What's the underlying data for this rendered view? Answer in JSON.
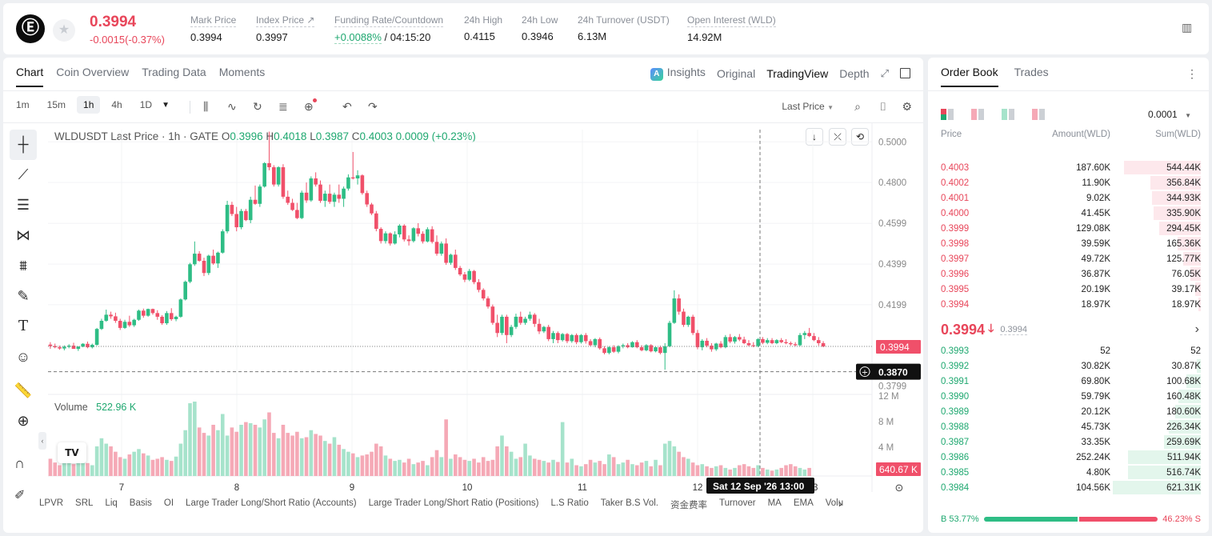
{
  "ticker": {
    "logo": "Ⓔ",
    "price": "0.3994",
    "change": "-0.0015(-0.37%)",
    "stats": [
      {
        "label": "Mark Price",
        "value": "0.3994"
      },
      {
        "label": "Index Price ↗",
        "value": "0.3997"
      },
      {
        "label": "Funding Rate/Countdown",
        "value": "+0.0088%",
        "value2": "/ 04:15:20"
      },
      {
        "label": "24h High",
        "value": "0.4115"
      },
      {
        "label": "24h Low",
        "value": "0.3946"
      },
      {
        "label": "24h Turnover (USDT)",
        "value": "6.13M"
      },
      {
        "label": "Open Interest (WLD)",
        "value": "14.92M"
      }
    ]
  },
  "chart": {
    "tabs": [
      "Chart",
      "Coin Overview",
      "Trading Data",
      "Moments"
    ],
    "views": {
      "insights": "Insights",
      "original": "Original",
      "tradingview": "TradingView",
      "depth": "Depth"
    },
    "timeframes": [
      "1m",
      "15m",
      "1h",
      "4h",
      "1D"
    ],
    "price_type": "Last Price",
    "legend": {
      "title": "WLDUSDT Last Price · 1h · GATE",
      "o": "0.3996",
      "h": "0.4018",
      "l": "0.3987",
      "c": "0.4003",
      "chg": "0.0009 (+0.23%)"
    },
    "volume": {
      "label": "Volume",
      "value": "522.96 K"
    },
    "crosshair": {
      "price": "0.3870",
      "date": "Sat 12 Sep '26",
      "time": "13:00"
    },
    "last_price_label": "0.3994",
    "last_vol_label": "640.67 K",
    "indicators": [
      "LPVR",
      "SRL",
      "Liq",
      "Basis",
      "OI",
      "Large Trader Long/Short Ratio (Accounts)",
      "Large Trader Long/Short Ratio (Positions)",
      "L.S Ratio",
      "Taker B.S Vol.",
      "资金费率",
      "Turnover",
      "MA",
      "EMA",
      "Volu"
    ]
  },
  "chart_data": {
    "type": "candlestick",
    "x_ticks": [
      "7",
      "8",
      "9",
      "10",
      "11",
      "12",
      "13"
    ],
    "y_ticks": [
      "0.5000",
      "0.4800",
      "0.4599",
      "0.4399",
      "0.4199",
      "0.3994",
      "0.3799"
    ],
    "vol_ticks": [
      "12 M",
      "8 M",
      "4 M"
    ],
    "ohlc": [
      [
        0.4003,
        0.4015,
        0.3982,
        0.3996
      ],
      [
        0.3996,
        0.4008,
        0.3985,
        0.399
      ],
      [
        0.399,
        0.3998,
        0.3978,
        0.3984
      ],
      [
        0.3984,
        0.3999,
        0.3975,
        0.3992
      ],
      [
        0.3992,
        0.4005,
        0.3985,
        0.3998
      ],
      [
        0.3998,
        0.4012,
        0.3988,
        0.3982
      ],
      [
        0.3982,
        0.3995,
        0.3972,
        0.3993
      ],
      [
        0.3993,
        0.401,
        0.399,
        0.4007
      ],
      [
        0.4007,
        0.4018,
        0.3985,
        0.399
      ],
      [
        0.399,
        0.4008,
        0.3984,
        0.4002
      ],
      [
        0.4002,
        0.4085,
        0.3998,
        0.408
      ],
      [
        0.408,
        0.413,
        0.4075,
        0.412
      ],
      [
        0.412,
        0.4175,
        0.4115,
        0.415
      ],
      [
        0.415,
        0.4165,
        0.413,
        0.4142
      ],
      [
        0.4142,
        0.416,
        0.411,
        0.412
      ],
      [
        0.412,
        0.413,
        0.4075,
        0.4085
      ],
      [
        0.4085,
        0.4125,
        0.408,
        0.4115
      ],
      [
        0.4115,
        0.4145,
        0.409,
        0.4098
      ],
      [
        0.4098,
        0.413,
        0.409,
        0.4125
      ],
      [
        0.4125,
        0.4175,
        0.412,
        0.417
      ],
      [
        0.417,
        0.418,
        0.4135,
        0.4145
      ],
      [
        0.4145,
        0.418,
        0.414,
        0.4178
      ],
      [
        0.4178,
        0.418,
        0.415,
        0.4158
      ],
      [
        0.4158,
        0.4172,
        0.4125,
        0.414
      ],
      [
        0.414,
        0.4148,
        0.41,
        0.4108
      ],
      [
        0.4108,
        0.4168,
        0.41,
        0.4158
      ],
      [
        0.4158,
        0.4182,
        0.412,
        0.4128
      ],
      [
        0.4128,
        0.4145,
        0.4118,
        0.414
      ],
      [
        0.414,
        0.423,
        0.4135,
        0.4225
      ],
      [
        0.4225,
        0.4318,
        0.422,
        0.4312
      ],
      [
        0.4312,
        0.4405,
        0.4305,
        0.4398
      ],
      [
        0.4398,
        0.451,
        0.439,
        0.445
      ],
      [
        0.445,
        0.4462,
        0.441,
        0.4415
      ],
      [
        0.4415,
        0.443,
        0.434,
        0.4355
      ],
      [
        0.4355,
        0.4445,
        0.4345,
        0.444
      ],
      [
        0.444,
        0.447,
        0.4395,
        0.4402
      ],
      [
        0.4402,
        0.446,
        0.438,
        0.4455
      ],
      [
        0.4455,
        0.457,
        0.445,
        0.456
      ],
      [
        0.456,
        0.471,
        0.455,
        0.469
      ],
      [
        0.469,
        0.4705,
        0.4635,
        0.4645
      ],
      [
        0.4645,
        0.468,
        0.456,
        0.458
      ],
      [
        0.458,
        0.467,
        0.457,
        0.466
      ],
      [
        0.466,
        0.467,
        0.461,
        0.4615
      ],
      [
        0.4615,
        0.473,
        0.46,
        0.4715
      ],
      [
        0.4715,
        0.4785,
        0.469,
        0.4695
      ],
      [
        0.4695,
        0.479,
        0.468,
        0.478
      ],
      [
        0.478,
        0.49,
        0.4775,
        0.4895
      ],
      [
        0.4895,
        0.505,
        0.486,
        0.4875
      ],
      [
        0.4875,
        0.4885,
        0.478,
        0.479
      ],
      [
        0.479,
        0.488,
        0.478,
        0.4875
      ],
      [
        0.4875,
        0.489,
        0.472,
        0.473
      ],
      [
        0.473,
        0.476,
        0.469,
        0.47
      ],
      [
        0.47,
        0.472,
        0.466,
        0.4665
      ],
      [
        0.4665,
        0.47,
        0.462,
        0.4625
      ],
      [
        0.4625,
        0.476,
        0.462,
        0.475
      ],
      [
        0.475,
        0.48,
        0.47,
        0.4712
      ],
      [
        0.4712,
        0.483,
        0.4705,
        0.482
      ],
      [
        0.482,
        0.485,
        0.478,
        0.479
      ],
      [
        0.479,
        0.481,
        0.47,
        0.471
      ],
      [
        0.471,
        0.476,
        0.468,
        0.4745
      ],
      [
        0.4745,
        0.479,
        0.4695,
        0.4705
      ],
      [
        0.4705,
        0.475,
        0.468,
        0.474
      ],
      [
        0.474,
        0.479,
        0.47,
        0.472
      ],
      [
        0.472,
        0.478,
        0.468,
        0.477
      ],
      [
        0.477,
        0.484,
        0.476,
        0.4825
      ],
      [
        0.4825,
        0.495,
        0.4815,
        0.482
      ],
      [
        0.482,
        0.486,
        0.479,
        0.4835
      ],
      [
        0.4835,
        0.484,
        0.474,
        0.4748
      ],
      [
        0.4748,
        0.476,
        0.468,
        0.4692
      ],
      [
        0.4692,
        0.47,
        0.464,
        0.4648
      ],
      [
        0.4648,
        0.466,
        0.456,
        0.4572
      ],
      [
        0.4572,
        0.458,
        0.45,
        0.4512
      ],
      [
        0.4512,
        0.456,
        0.45,
        0.455
      ],
      [
        0.455,
        0.4555,
        0.449,
        0.45
      ],
      [
        0.45,
        0.456,
        0.4495,
        0.4545
      ],
      [
        0.4545,
        0.4595,
        0.453,
        0.4588
      ],
      [
        0.4588,
        0.4595,
        0.451,
        0.452
      ],
      [
        0.452,
        0.454,
        0.449,
        0.4512
      ],
      [
        0.4512,
        0.458,
        0.4505,
        0.4575
      ],
      [
        0.4575,
        0.46,
        0.4535,
        0.4548
      ],
      [
        0.4548,
        0.456,
        0.45,
        0.451
      ],
      [
        0.451,
        0.458,
        0.4505,
        0.457
      ],
      [
        0.457,
        0.4585,
        0.45,
        0.4508
      ],
      [
        0.4508,
        0.454,
        0.444,
        0.445
      ],
      [
        0.445,
        0.451,
        0.444,
        0.45
      ],
      [
        0.45,
        0.4525,
        0.4395,
        0.4405
      ],
      [
        0.4405,
        0.445,
        0.4395,
        0.4445
      ],
      [
        0.4445,
        0.447,
        0.437,
        0.438
      ],
      [
        0.438,
        0.439,
        0.434,
        0.4348
      ],
      [
        0.4348,
        0.436,
        0.431,
        0.4322
      ],
      [
        0.4322,
        0.4375,
        0.4315,
        0.4365
      ],
      [
        0.4365,
        0.437,
        0.43,
        0.431
      ],
      [
        0.431,
        0.4325,
        0.426,
        0.4272
      ],
      [
        0.4272,
        0.428,
        0.422,
        0.423
      ],
      [
        0.423,
        0.424,
        0.418,
        0.419
      ],
      [
        0.419,
        0.42,
        0.41,
        0.411
      ],
      [
        0.411,
        0.415,
        0.404,
        0.406
      ],
      [
        0.406,
        0.415,
        0.405,
        0.414
      ],
      [
        0.414,
        0.415,
        0.401,
        0.405
      ],
      [
        0.405,
        0.41,
        0.404,
        0.409
      ],
      [
        0.409,
        0.4155,
        0.408,
        0.414
      ],
      [
        0.414,
        0.4165,
        0.41,
        0.411
      ],
      [
        0.411,
        0.414,
        0.41,
        0.413
      ],
      [
        0.413,
        0.4165,
        0.412,
        0.415
      ],
      [
        0.415,
        0.4158,
        0.409,
        0.4105
      ],
      [
        0.4105,
        0.413,
        0.4055,
        0.4068
      ],
      [
        0.4068,
        0.4095,
        0.406,
        0.409
      ],
      [
        0.409,
        0.41,
        0.402,
        0.403
      ],
      [
        0.403,
        0.407,
        0.401,
        0.406
      ],
      [
        0.406,
        0.4068,
        0.401,
        0.4025
      ],
      [
        0.4025,
        0.406,
        0.4018,
        0.4055
      ],
      [
        0.4055,
        0.406,
        0.401,
        0.402
      ],
      [
        0.402,
        0.4055,
        0.4012,
        0.405
      ],
      [
        0.405,
        0.4058,
        0.4005,
        0.4015
      ],
      [
        0.4015,
        0.4055,
        0.4008,
        0.405
      ],
      [
        0.405,
        0.406,
        0.4008,
        0.402
      ],
      [
        0.402,
        0.403,
        0.3995,
        0.4
      ],
      [
        0.4,
        0.4035,
        0.399,
        0.403
      ],
      [
        0.403,
        0.4038,
        0.3978,
        0.3985
      ],
      [
        0.3985,
        0.3995,
        0.3955,
        0.3962
      ],
      [
        0.3962,
        0.3995,
        0.3955,
        0.399
      ],
      [
        0.399,
        0.4,
        0.3962,
        0.3968
      ],
      [
        0.3968,
        0.4,
        0.396,
        0.3995
      ],
      [
        0.3995,
        0.4008,
        0.3985,
        0.4
      ],
      [
        0.4,
        0.401,
        0.3985,
        0.399
      ],
      [
        0.399,
        0.402,
        0.3988,
        0.4015
      ],
      [
        0.4015,
        0.4025,
        0.3985,
        0.399
      ],
      [
        0.399,
        0.4,
        0.397,
        0.3975
      ],
      [
        0.3975,
        0.4005,
        0.397,
        0.4
      ],
      [
        0.4,
        0.4005,
        0.3965,
        0.397
      ],
      [
        0.397,
        0.3995,
        0.3965,
        0.399
      ],
      [
        0.399,
        0.3998,
        0.3955,
        0.3962
      ],
      [
        0.3962,
        0.401,
        0.388,
        0.3995
      ],
      [
        0.3995,
        0.412,
        0.399,
        0.411
      ],
      [
        0.411,
        0.427,
        0.4105,
        0.423
      ],
      [
        0.423,
        0.425,
        0.415,
        0.4165
      ],
      [
        0.4165,
        0.418,
        0.409,
        0.41
      ],
      [
        0.41,
        0.4145,
        0.409,
        0.414
      ],
      [
        0.414,
        0.415,
        0.405,
        0.406
      ],
      [
        0.406,
        0.4075,
        0.398,
        0.399
      ],
      [
        0.399,
        0.403,
        0.3975,
        0.4022
      ],
      [
        0.4022,
        0.4035,
        0.399,
        0.3998
      ],
      [
        0.3998,
        0.401,
        0.3968,
        0.398
      ],
      [
        0.398,
        0.4012,
        0.3972,
        0.4008
      ],
      [
        0.4008,
        0.402,
        0.3985,
        0.399
      ],
      [
        0.399,
        0.405,
        0.3985,
        0.404
      ],
      [
        0.404,
        0.4055,
        0.401,
        0.4018
      ],
      [
        0.4018,
        0.4045,
        0.4008,
        0.404
      ],
      [
        0.404,
        0.4055,
        0.402,
        0.4028
      ],
      [
        0.4028,
        0.4042,
        0.4005,
        0.401
      ],
      [
        0.401,
        0.4025,
        0.3995,
        0.4
      ],
      [
        0.4,
        0.4015,
        0.399,
        0.3996
      ],
      [
        0.3996,
        0.4035,
        0.399,
        0.403
      ],
      [
        0.403,
        0.404,
        0.4005,
        0.4012
      ],
      [
        0.4012,
        0.4035,
        0.4005,
        0.4025
      ],
      [
        0.4025,
        0.4035,
        0.4005,
        0.401
      ],
      [
        0.401,
        0.403,
        0.4005,
        0.4025
      ],
      [
        0.4025,
        0.4035,
        0.401,
        0.4015
      ],
      [
        0.4015,
        0.403,
        0.4005,
        0.401
      ],
      [
        0.401,
        0.4018,
        0.3998,
        0.4005
      ],
      [
        0.4005,
        0.4015,
        0.3995,
        0.4
      ],
      [
        0.4,
        0.406,
        0.3995,
        0.405
      ],
      [
        0.405,
        0.407,
        0.403,
        0.406
      ],
      [
        0.406,
        0.4085,
        0.404,
        0.4045
      ],
      [
        0.4045,
        0.406,
        0.402,
        0.4025
      ],
      [
        0.4025,
        0.404,
        0.3998,
        0.401
      ],
      [
        0.401,
        0.402,
        0.399,
        0.3994
      ]
    ],
    "volume": [
      3.2,
      2.5,
      2.0,
      2.8,
      3.5,
      2.2,
      2.6,
      3.0,
      2.4,
      2.0,
      5.5,
      7.0,
      6.0,
      5.5,
      4.5,
      3.5,
      3.2,
      4.0,
      4.5,
      5.0,
      4.2,
      3.8,
      3.0,
      3.2,
      3.5,
      3.0,
      2.8,
      3.6,
      6.0,
      8.5,
      13.5,
      13.8,
      9.0,
      8.0,
      7.5,
      9.5,
      8.5,
      11.5,
      7.5,
      9.0,
      8.2,
      9.5,
      10.0,
      9.8,
      9.5,
      9.0,
      10.5,
      11.8,
      8.0,
      7.0,
      9.5,
      8.0,
      7.5,
      8.2,
      7.0,
      7.2,
      8.5,
      7.8,
      7.5,
      6.5,
      6.0,
      7.2,
      5.8,
      5.0,
      4.5,
      4.2,
      3.5,
      3.8,
      4.0,
      4.5,
      6.0,
      5.5,
      3.8,
      3.2,
      2.8,
      3.0,
      2.5,
      3.2,
      2.2,
      2.5,
      2.8,
      2.0,
      3.5,
      4.8,
      3.5,
      10.5,
      3.2,
      4.0,
      3.5,
      3.0,
      2.8,
      3.2,
      2.5,
      3.5,
      2.8,
      3.0,
      5.5,
      7.5,
      5.5,
      4.5,
      3.2,
      3.5,
      6.0,
      3.8,
      3.2,
      3.0,
      2.8,
      2.5,
      3.0,
      2.6,
      10.0,
      2.5,
      3.2,
      2.0,
      1.8,
      2.2,
      3.0,
      2.5,
      2.8,
      2.2,
      4.0,
      3.5,
      2.2,
      2.5,
      3.0,
      2.2,
      2.0,
      2.5,
      2.8,
      1.8,
      3.0,
      2.0,
      6.0,
      6.5,
      5.5,
      4.5,
      3.5,
      3.2,
      2.5,
      2.0,
      2.2,
      1.8,
      1.5,
      1.8,
      2.0,
      1.5,
      1.2,
      1.5,
      2.0,
      2.2,
      1.8,
      1.5,
      2.0,
      1.5,
      1.2,
      1.0,
      1.2,
      1.5,
      2.0,
      2.2,
      1.8,
      1.5,
      1.2,
      1.5
    ]
  },
  "order_book": {
    "tabs": [
      "Order Book",
      "Trades"
    ],
    "precision": "0.0001",
    "headers": [
      "Price",
      "Amount(WLD)",
      "Sum(WLD)"
    ],
    "asks": [
      [
        "0.4003",
        "187.60K",
        "544.44K"
      ],
      [
        "0.4002",
        "11.90K",
        "356.84K"
      ],
      [
        "0.4001",
        "9.02K",
        "344.93K"
      ],
      [
        "0.4000",
        "41.45K",
        "335.90K"
      ],
      [
        "0.3999",
        "129.08K",
        "294.45K"
      ],
      [
        "0.3998",
        "39.59K",
        "165.36K"
      ],
      [
        "0.3997",
        "49.72K",
        "125.77K"
      ],
      [
        "0.3996",
        "36.87K",
        "76.05K"
      ],
      [
        "0.3995",
        "20.19K",
        "39.17K"
      ],
      [
        "0.3994",
        "18.97K",
        "18.97K"
      ]
    ],
    "asks_sum_k": [
      544.44,
      356.84,
      344.93,
      335.9,
      294.45,
      165.36,
      125.77,
      76.05,
      39.17,
      18.97
    ],
    "mid_price": "0.3994",
    "mid_arrow": "🡓",
    "mid_mark": "0.3994",
    "bids": [
      [
        "0.3993",
        "52",
        "52"
      ],
      [
        "0.3992",
        "30.82K",
        "30.87K"
      ],
      [
        "0.3991",
        "69.80K",
        "100.68K"
      ],
      [
        "0.3990",
        "59.79K",
        "160.48K"
      ],
      [
        "0.3989",
        "20.12K",
        "180.60K"
      ],
      [
        "0.3988",
        "45.73K",
        "226.34K"
      ],
      [
        "0.3987",
        "33.35K",
        "259.69K"
      ],
      [
        "0.3986",
        "252.24K",
        "511.94K"
      ],
      [
        "0.3985",
        "4.80K",
        "516.74K"
      ],
      [
        "0.3984",
        "104.56K",
        "621.31K"
      ]
    ],
    "bids_sum_k": [
      0.052,
      30.87,
      100.68,
      160.48,
      180.6,
      226.34,
      259.69,
      511.94,
      516.74,
      621.31
    ],
    "buy_label": "B",
    "buy_pct": "53.77%",
    "sell_pct": "46.23%",
    "sell_label": "S",
    "buy_ratio": 0.5377
  },
  "colors": {
    "up": "#2ebd85",
    "down": "#f0506a",
    "up_text": "#1fa870",
    "down_text": "#e8465a",
    "vol_up": "#a6e3cb",
    "vol_down": "#f5a9b6"
  }
}
